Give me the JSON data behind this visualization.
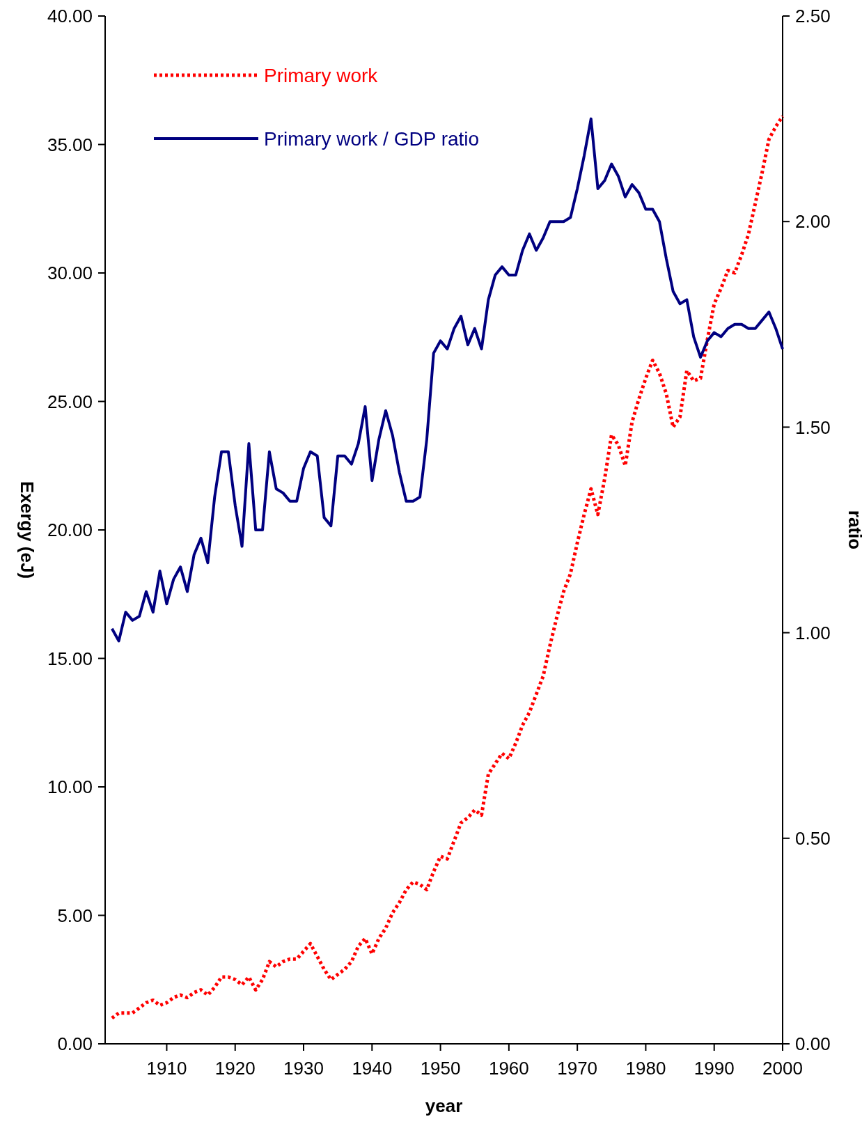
{
  "chart_data": {
    "type": "line",
    "xlabel": "year",
    "ylabel": "Exergy (eJ)",
    "y2label": "ratio",
    "legend": "top left",
    "grid": false,
    "x": [
      1902,
      1903,
      1904,
      1905,
      1906,
      1907,
      1908,
      1909,
      1910,
      1911,
      1912,
      1913,
      1914,
      1915,
      1916,
      1917,
      1918,
      1919,
      1920,
      1921,
      1922,
      1923,
      1924,
      1925,
      1926,
      1927,
      1928,
      1929,
      1930,
      1931,
      1932,
      1933,
      1934,
      1935,
      1936,
      1937,
      1938,
      1939,
      1940,
      1941,
      1942,
      1943,
      1944,
      1945,
      1946,
      1947,
      1948,
      1949,
      1950,
      1951,
      1952,
      1953,
      1954,
      1955,
      1956,
      1957,
      1958,
      1959,
      1960,
      1961,
      1962,
      1963,
      1964,
      1965,
      1966,
      1967,
      1968,
      1969,
      1970,
      1971,
      1972,
      1973,
      1974,
      1975,
      1976,
      1977,
      1978,
      1979,
      1980,
      1981,
      1982,
      1983,
      1984,
      1985,
      1986,
      1987,
      1988,
      1989,
      1990,
      1991,
      1992,
      1993,
      1994,
      1995,
      1996,
      1997,
      1998,
      1999,
      2000
    ],
    "xlim": [
      1901,
      2000
    ],
    "xticks": [
      1910,
      1920,
      1930,
      1940,
      1950,
      1960,
      1970,
      1980,
      1990,
      2000
    ],
    "ylim": [
      0,
      40
    ],
    "yticks": [
      {
        "value": 0,
        "label": "0.00"
      },
      {
        "value": 5,
        "label": "5.00"
      },
      {
        "value": 10,
        "label": "10.00"
      },
      {
        "value": 15,
        "label": "15.00"
      },
      {
        "value": 20,
        "label": "20.00"
      },
      {
        "value": 25,
        "label": "25.00"
      },
      {
        "value": 30,
        "label": "30.00"
      },
      {
        "value": 35,
        "label": "35.00"
      },
      {
        "value": 40,
        "label": "40.00"
      }
    ],
    "y2lim": [
      0,
      2.5
    ],
    "y2ticks": [
      {
        "value": 0,
        "label": "0.00"
      },
      {
        "value": 0.5,
        "label": "0.50"
      },
      {
        "value": 1,
        "label": "1.00"
      },
      {
        "value": 1.5,
        "label": "1.50"
      },
      {
        "value": 2,
        "label": "2.00"
      },
      {
        "value": 2.5,
        "label": "2.50"
      }
    ],
    "series": [
      {
        "name": "Primary work",
        "color": "#ff0000",
        "line_style": "dotted",
        "values": [
          1.0,
          1.2,
          1.2,
          1.2,
          1.4,
          1.6,
          1.7,
          1.5,
          1.6,
          1.8,
          1.9,
          1.8,
          2.0,
          2.1,
          1.9,
          2.2,
          2.6,
          2.6,
          2.5,
          2.3,
          2.6,
          2.1,
          2.5,
          3.2,
          3.0,
          3.2,
          3.3,
          3.3,
          3.6,
          3.9,
          3.4,
          2.9,
          2.5,
          2.7,
          2.9,
          3.2,
          3.8,
          4.1,
          3.5,
          4.1,
          4.5,
          5.1,
          5.5,
          6.0,
          6.3,
          6.2,
          6.0,
          6.7,
          7.3,
          7.2,
          7.9,
          8.6,
          8.8,
          9.1,
          8.9,
          10.5,
          10.9,
          11.3,
          11.1,
          11.7,
          12.4,
          12.9,
          13.6,
          14.3,
          15.5,
          16.6,
          17.6,
          18.3,
          19.5,
          20.6,
          21.6,
          20.6,
          22.0,
          23.7,
          23.3,
          22.5,
          24.2,
          25.1,
          25.9,
          26.6,
          26.1,
          25.3,
          24.0,
          24.4,
          26.2,
          25.8,
          25.9,
          27.4,
          28.8,
          29.4,
          30.1,
          30.0,
          30.7,
          31.5,
          32.7,
          33.9,
          35.2,
          35.7,
          36.1
        ]
      },
      {
        "name": "Primary work / GDP ratio",
        "color": "#000080",
        "line_style": "solid",
        "axis": "y2",
        "values": [
          1.01,
          0.98,
          1.05,
          1.03,
          1.04,
          1.1,
          1.05,
          1.15,
          1.07,
          1.13,
          1.16,
          1.1,
          1.19,
          1.23,
          1.17,
          1.33,
          1.44,
          1.44,
          1.31,
          1.21,
          1.46,
          1.25,
          1.25,
          1.44,
          1.35,
          1.34,
          1.32,
          1.32,
          1.4,
          1.44,
          1.43,
          1.28,
          1.26,
          1.43,
          1.43,
          1.41,
          1.46,
          1.55,
          1.37,
          1.47,
          1.54,
          1.48,
          1.39,
          1.32,
          1.32,
          1.33,
          1.47,
          1.68,
          1.71,
          1.69,
          1.74,
          1.77,
          1.7,
          1.74,
          1.69,
          1.81,
          1.87,
          1.89,
          1.87,
          1.87,
          1.93,
          1.97,
          1.93,
          1.96,
          2.0,
          2.0,
          2.0,
          2.01,
          2.08,
          2.16,
          2.25,
          2.08,
          2.1,
          2.14,
          2.11,
          2.06,
          2.09,
          2.07,
          2.03,
          2.03,
          2.0,
          1.91,
          1.83,
          1.8,
          1.81,
          1.72,
          1.67,
          1.71,
          1.73,
          1.72,
          1.74,
          1.75,
          1.75,
          1.74,
          1.74,
          1.76,
          1.78,
          1.74,
          1.69
        ]
      }
    ]
  }
}
